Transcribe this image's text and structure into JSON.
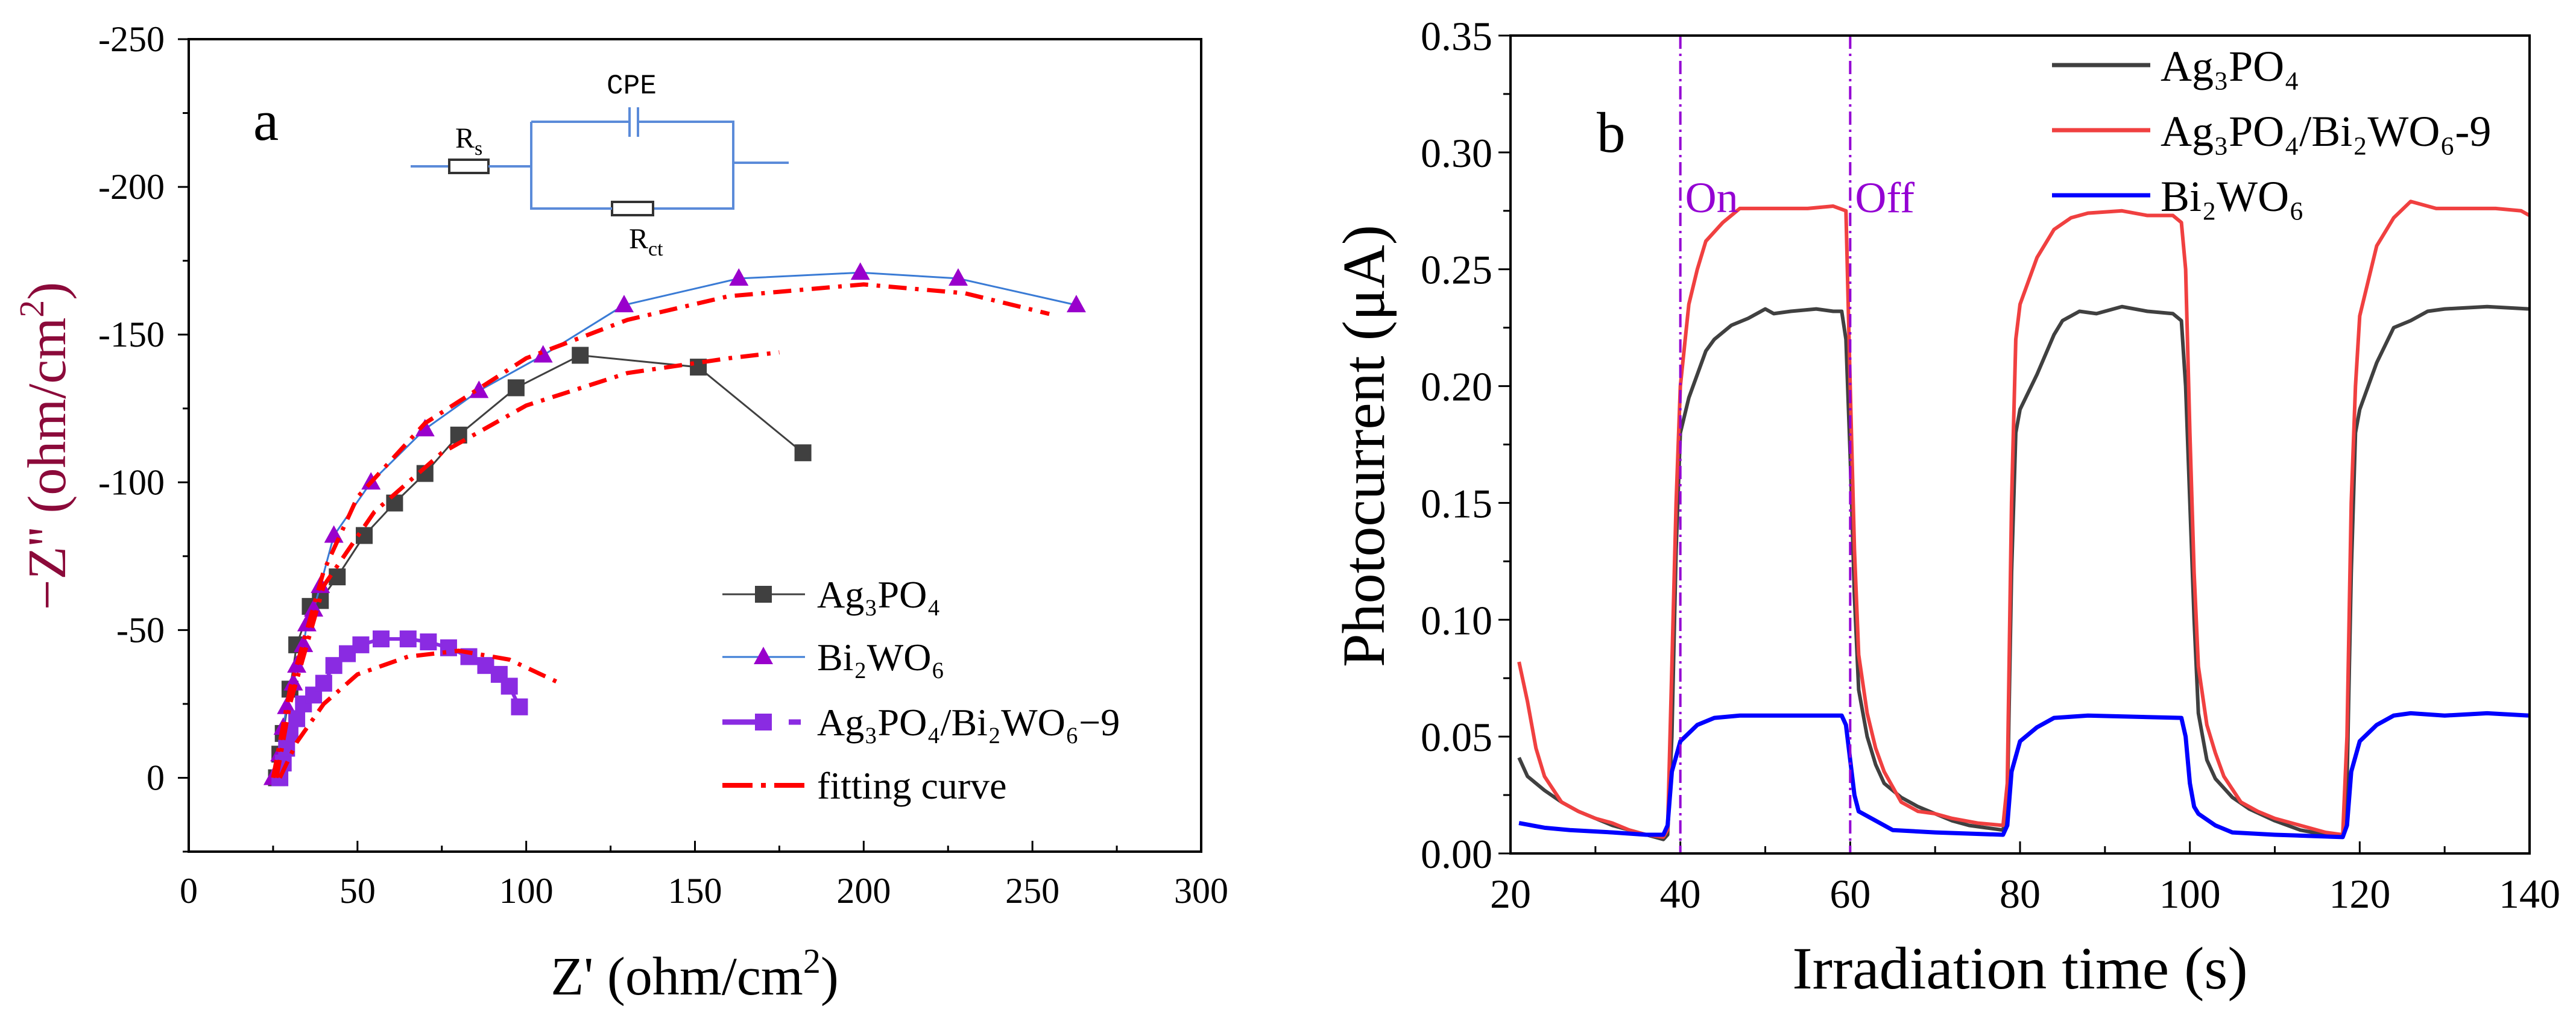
{
  "chart_data": [
    {
      "type": "scatter",
      "panel_label": "a",
      "xlabel": "Z' (ohm/cm",
      "xlabel_sup": "2",
      "xlabel_end": ")",
      "ylabel": "−Z'' (ohm/cm",
      "ylabel_sup": "2",
      "ylabel_end": ")",
      "xlim": [
        0,
        300
      ],
      "ylim": [
        25,
        -250
      ],
      "xticks": [
        0,
        50,
        100,
        150,
        200,
        250,
        300
      ],
      "yticks": [
        0,
        -50,
        -100,
        -150,
        -200,
        -250
      ],
      "circuit": {
        "cpe": "CPE",
        "rs_main": "R",
        "rs_sub": "s",
        "rct_main": "R",
        "rct_sub": "ct"
      },
      "series": [
        {
          "name": "Ag₃PO₄",
          "color": "#404040",
          "marker": "square",
          "x": [
            26,
            27,
            28,
            30,
            32,
            36,
            39,
            44,
            52,
            61,
            70,
            80,
            97,
            116,
            151,
            182
          ],
          "y": [
            0,
            -8,
            -15,
            -30,
            -45,
            -58,
            -60,
            -68,
            -82,
            -93,
            -103,
            -116,
            -132,
            -143,
            -139,
            -110
          ]
        },
        {
          "name": "Bi₂WO₆",
          "color": "#9900cc",
          "line_color": "#3a7bd5",
          "marker": "triangle",
          "x": [
            25,
            27,
            28,
            29,
            31,
            32,
            34,
            35,
            37,
            39,
            43,
            54,
            70,
            86,
            105,
            129,
            163,
            199,
            228,
            263
          ],
          "y": [
            0,
            -8,
            -17,
            -24,
            -32,
            -38,
            -45,
            -52,
            -57,
            -65,
            -82,
            -100,
            -118,
            -131,
            -143,
            -160,
            -169,
            -171,
            -169,
            -160
          ]
        },
        {
          "name": "Ag₃PO₄/Bi₂WO₆−9",
          "color": "#8a2be2",
          "marker": "square-dash",
          "x": [
            27,
            28,
            29,
            30,
            32,
            34,
            37,
            40,
            43,
            47,
            51,
            57,
            65,
            71,
            77,
            83,
            88,
            92,
            95,
            98
          ],
          "y": [
            0,
            -5,
            -10,
            -15,
            -20,
            -25,
            -28,
            -32,
            -38,
            -42,
            -45,
            -47,
            -47,
            -46,
            -44,
            -41,
            -38,
            -35,
            -31,
            -24
          ]
        },
        {
          "name": "fitting curve",
          "color": "#ff0000",
          "marker": "dash-dot",
          "curves": [
            {
              "x": [
                25,
                30,
                35,
                40,
                50,
                70,
                100,
                130,
                160,
                200,
                230,
                255
              ],
              "y": [
                0,
                -30,
                -50,
                -70,
                -95,
                -120,
                -142,
                -155,
                -163,
                -167,
                -164,
                -157
              ]
            },
            {
              "x": [
                26,
                30,
                40,
                55,
                75,
                100,
                130,
                160,
                175
              ],
              "y": [
                0,
                -25,
                -65,
                -90,
                -110,
                -126,
                -137,
                -142,
                -144
              ]
            },
            {
              "x": [
                27,
                32,
                40,
                50,
                65,
                80,
                95,
                110
              ],
              "y": [
                0,
                -12,
                -25,
                -35,
                -41,
                -43,
                -40,
                -32
              ]
            }
          ]
        }
      ]
    },
    {
      "type": "line",
      "panel_label": "b",
      "xlabel": "Irradiation time (s)",
      "ylabel": "Photocurrent (μA)",
      "xlim": [
        20,
        140
      ],
      "ylim": [
        0,
        0.35
      ],
      "xticks": [
        20,
        40,
        60,
        80,
        100,
        120,
        140
      ],
      "yticks": [
        "0.00",
        "0.05",
        "0.10",
        "0.15",
        "0.20",
        "0.25",
        "0.30",
        "0.35"
      ],
      "annotations": [
        {
          "text": "On",
          "x": 40
        },
        {
          "text": "Off",
          "x": 60
        }
      ],
      "annotation_color": "#9400d3",
      "series": [
        {
          "name": "Ag₃PO₄",
          "color": "#404040",
          "x": [
            21,
            22,
            24,
            26,
            28,
            30,
            32,
            34,
            36,
            38,
            38.5,
            39,
            39.5,
            40,
            41,
            42,
            43,
            44,
            46,
            48,
            50,
            51,
            53,
            56,
            58,
            59,
            59.5,
            60,
            60.5,
            61,
            62,
            63,
            64,
            66,
            68,
            70,
            72,
            74,
            76,
            78,
            78.5,
            79,
            79.5,
            80,
            82,
            84,
            85,
            87,
            89,
            92,
            95,
            98,
            99,
            99.5,
            100,
            100.5,
            101,
            102,
            103,
            105,
            107,
            110,
            113,
            116,
            118,
            118.5,
            119,
            119.5,
            120,
            122,
            124,
            126,
            128,
            130,
            135,
            140
          ],
          "y": [
            0.041,
            0.033,
            0.027,
            0.022,
            0.018,
            0.015,
            0.012,
            0.01,
            0.008,
            0.006,
            0.008,
            0.05,
            0.13,
            0.18,
            0.195,
            0.205,
            0.215,
            0.22,
            0.226,
            0.229,
            0.233,
            0.231,
            0.232,
            0.233,
            0.232,
            0.232,
            0.22,
            0.17,
            0.11,
            0.07,
            0.05,
            0.038,
            0.03,
            0.024,
            0.02,
            0.017,
            0.014,
            0.012,
            0.011,
            0.01,
            0.02,
            0.12,
            0.18,
            0.19,
            0.205,
            0.222,
            0.228,
            0.232,
            0.231,
            0.234,
            0.232,
            0.231,
            0.228,
            0.2,
            0.15,
            0.1,
            0.06,
            0.04,
            0.032,
            0.024,
            0.019,
            0.014,
            0.01,
            0.008,
            0.007,
            0.03,
            0.12,
            0.18,
            0.19,
            0.21,
            0.225,
            0.228,
            0.232,
            0.233,
            0.234,
            0.233
          ]
        },
        {
          "name": "Ag₃PO₄/Bi₂WO₆-9",
          "color": "#f04040",
          "x": [
            21,
            22,
            23,
            24,
            26,
            28,
            30,
            32,
            34,
            36,
            38,
            38.5,
            39,
            39.5,
            40,
            41,
            42,
            43,
            45,
            47,
            50,
            55,
            58,
            59.5,
            60,
            60.5,
            61,
            62,
            63,
            64,
            66,
            68,
            70,
            72,
            75,
            78,
            78.5,
            79,
            79.5,
            80,
            82,
            84,
            86,
            88,
            92,
            95,
            98,
            99,
            99.5,
            100,
            100.5,
            101,
            102,
            103,
            104,
            106,
            108,
            110,
            113,
            116,
            118,
            118.5,
            119,
            119.5,
            120,
            122,
            124,
            126,
            127,
            129,
            132,
            136,
            139,
            140
          ],
          "y": [
            0.082,
            0.065,
            0.045,
            0.033,
            0.022,
            0.018,
            0.015,
            0.013,
            0.01,
            0.008,
            0.007,
            0.01,
            0.08,
            0.15,
            0.2,
            0.235,
            0.25,
            0.262,
            0.27,
            0.276,
            0.276,
            0.276,
            0.277,
            0.275,
            0.2,
            0.13,
            0.085,
            0.06,
            0.045,
            0.035,
            0.022,
            0.018,
            0.017,
            0.015,
            0.013,
            0.012,
            0.03,
            0.15,
            0.22,
            0.235,
            0.255,
            0.267,
            0.272,
            0.274,
            0.275,
            0.273,
            0.273,
            0.27,
            0.25,
            0.18,
            0.12,
            0.08,
            0.055,
            0.043,
            0.033,
            0.022,
            0.018,
            0.015,
            0.012,
            0.009,
            0.008,
            0.05,
            0.15,
            0.2,
            0.23,
            0.26,
            0.272,
            0.279,
            0.278,
            0.276,
            0.276,
            0.276,
            0.275,
            0.273
          ]
        },
        {
          "name": "Bi₂WO₆",
          "color": "#0000ff",
          "x": [
            21,
            24,
            27,
            32,
            36,
            38,
            38.5,
            39,
            40,
            42,
            44,
            47,
            55,
            59,
            59.5,
            60,
            60.5,
            61,
            63,
            65,
            70,
            78,
            78.5,
            79,
            80,
            82,
            84,
            88,
            99,
            99.5,
            100,
            100.5,
            101,
            103,
            105,
            110,
            118,
            118.5,
            119,
            120,
            122,
            124,
            126,
            130,
            135,
            140
          ],
          "y": [
            0.013,
            0.011,
            0.01,
            0.009,
            0.008,
            0.008,
            0.012,
            0.035,
            0.048,
            0.055,
            0.058,
            0.059,
            0.059,
            0.059,
            0.055,
            0.04,
            0.025,
            0.018,
            0.014,
            0.01,
            0.009,
            0.008,
            0.012,
            0.035,
            0.048,
            0.054,
            0.058,
            0.059,
            0.058,
            0.05,
            0.03,
            0.02,
            0.017,
            0.012,
            0.009,
            0.008,
            0.007,
            0.012,
            0.035,
            0.048,
            0.055,
            0.059,
            0.06,
            0.059,
            0.06,
            0.059
          ]
        }
      ]
    }
  ]
}
